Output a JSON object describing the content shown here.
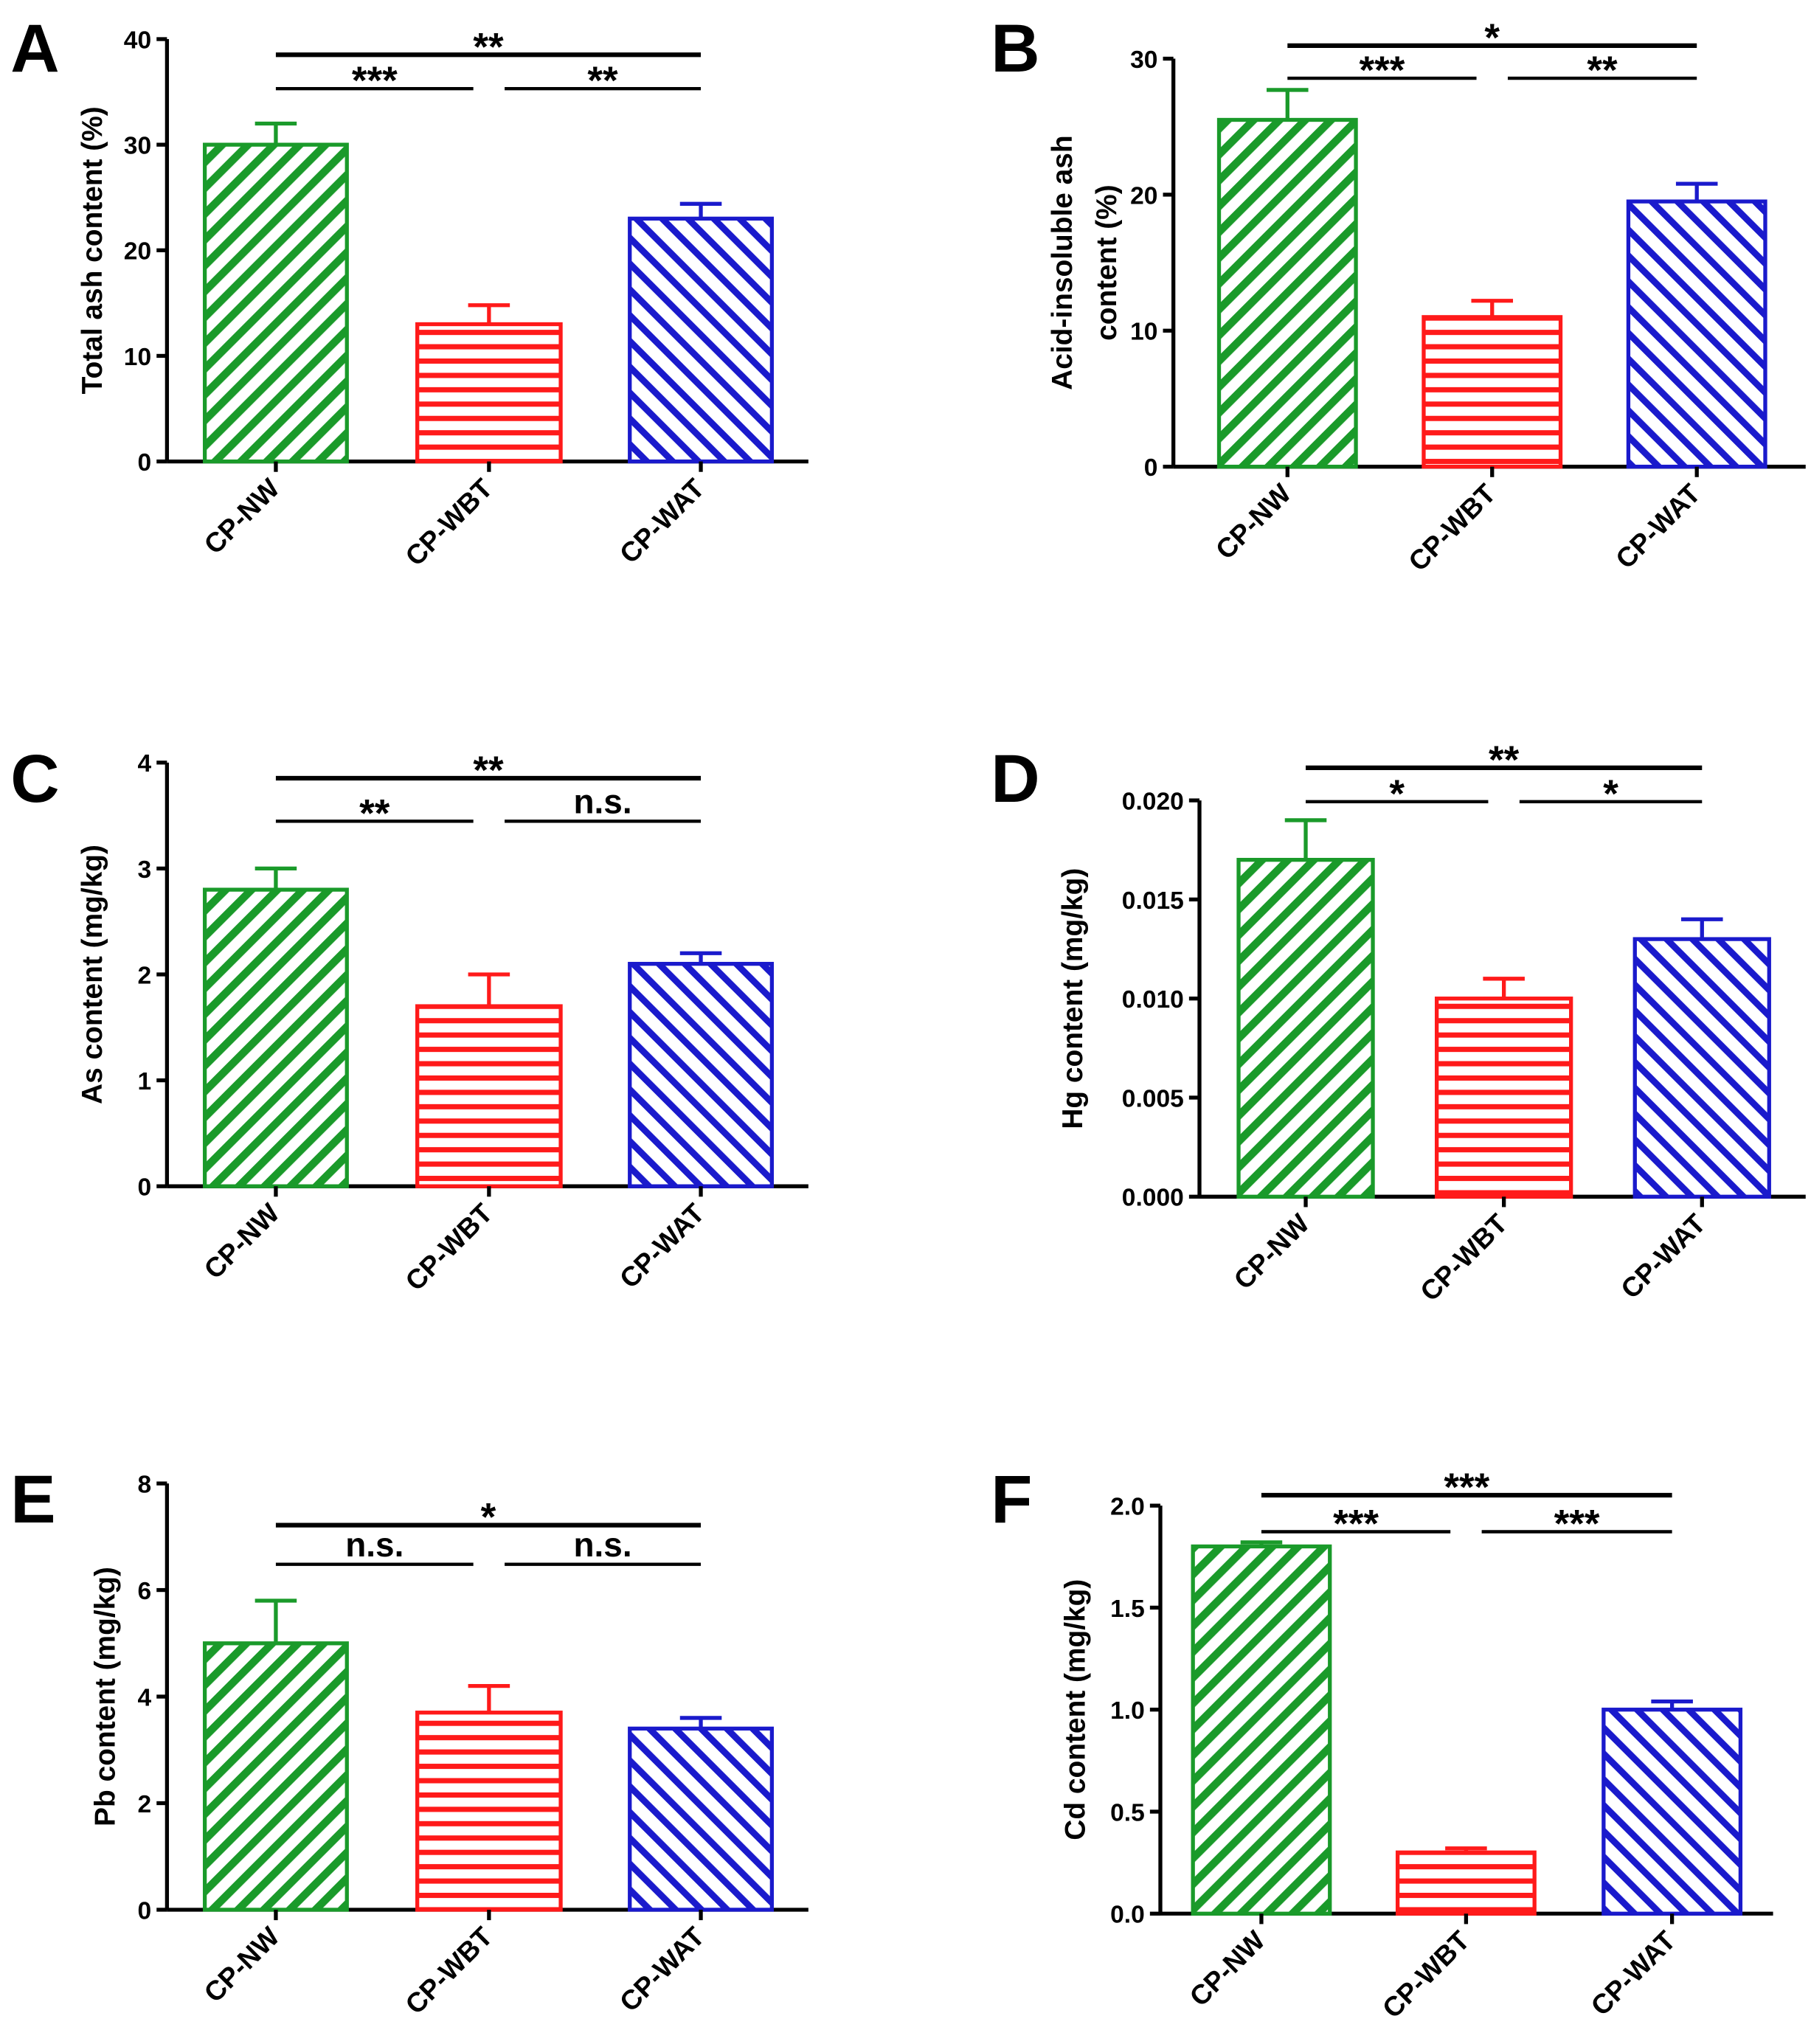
{
  "chart_data": [
    {
      "type": "bar",
      "panel_letter": "A",
      "ylabel": [
        "Total ash content (%)"
      ],
      "categories": [
        "CP-NW",
        "CP-WBT",
        "CP-WAT"
      ],
      "values": [
        30,
        13,
        23
      ],
      "errors": [
        2,
        1.8,
        1.4
      ],
      "ylim": [
        0,
        40
      ],
      "yticks": [
        "0",
        "10",
        "20",
        "30",
        "40"
      ],
      "comparisons": [
        {
          "groups": [
            0,
            2
          ],
          "label": "**"
        },
        {
          "groups": [
            0,
            1
          ],
          "label": "***"
        },
        {
          "groups": [
            1,
            2
          ],
          "label": "**"
        }
      ]
    },
    {
      "type": "bar",
      "panel_letter": "B",
      "ylabel": [
        "Acid-insoluble ash",
        "content (%)"
      ],
      "categories": [
        "CP-NW",
        "CP-WBT",
        "CP-WAT"
      ],
      "values": [
        25.5,
        11,
        19.5
      ],
      "errors": [
        2.2,
        1.2,
        1.3
      ],
      "ylim": [
        0,
        30
      ],
      "yticks": [
        "0",
        "10",
        "20",
        "30"
      ],
      "comparisons": [
        {
          "groups": [
            0,
            2
          ],
          "label": "*"
        },
        {
          "groups": [
            0,
            1
          ],
          "label": "***"
        },
        {
          "groups": [
            1,
            2
          ],
          "label": "**"
        }
      ]
    },
    {
      "type": "bar",
      "panel_letter": "C",
      "ylabel": [
        "As content (mg/kg)"
      ],
      "categories": [
        "CP-NW",
        "CP-WBT",
        "CP-WAT"
      ],
      "values": [
        2.8,
        1.7,
        2.1
      ],
      "errors": [
        0.2,
        0.3,
        0.1
      ],
      "ylim": [
        0,
        4
      ],
      "yticks": [
        "0",
        "1",
        "2",
        "3",
        "4"
      ],
      "comparisons": [
        {
          "groups": [
            0,
            2
          ],
          "label": "**"
        },
        {
          "groups": [
            0,
            1
          ],
          "label": "**"
        },
        {
          "groups": [
            1,
            2
          ],
          "label": "n.s."
        }
      ]
    },
    {
      "type": "bar",
      "panel_letter": "D",
      "ylabel": [
        "Hg content (mg/kg)"
      ],
      "categories": [
        "CP-NW",
        "CP-WBT",
        "CP-WAT"
      ],
      "values": [
        0.017,
        0.01,
        0.013
      ],
      "errors": [
        0.002,
        0.001,
        0.001
      ],
      "ylim": [
        0,
        0.02
      ],
      "yticks": [
        "0.000",
        "0.005",
        "0.010",
        "0.015",
        "0.020"
      ],
      "comparisons": [
        {
          "groups": [
            0,
            2
          ],
          "label": "**"
        },
        {
          "groups": [
            0,
            1
          ],
          "label": "*"
        },
        {
          "groups": [
            1,
            2
          ],
          "label": "*"
        }
      ]
    },
    {
      "type": "bar",
      "panel_letter": "E",
      "ylabel": [
        "Pb content (mg/kg)"
      ],
      "categories": [
        "CP-NW",
        "CP-WBT",
        "CP-WAT"
      ],
      "values": [
        5.0,
        3.7,
        3.4
      ],
      "errors": [
        0.8,
        0.5,
        0.2
      ],
      "ylim": [
        0,
        8
      ],
      "yticks": [
        "0",
        "2",
        "4",
        "6",
        "8"
      ],
      "comparisons": [
        {
          "groups": [
            0,
            2
          ],
          "label": "*"
        },
        {
          "groups": [
            0,
            1
          ],
          "label": "n.s."
        },
        {
          "groups": [
            1,
            2
          ],
          "label": "n.s."
        }
      ]
    },
    {
      "type": "bar",
      "panel_letter": "F",
      "ylabel": [
        "Cd content (mg/kg)"
      ],
      "categories": [
        "CP-NW",
        "CP-WBT",
        "CP-WAT"
      ],
      "values": [
        1.8,
        0.3,
        1.0
      ],
      "errors": [
        0.02,
        0.02,
        0.04
      ],
      "ylim": [
        0,
        2.0
      ],
      "yticks": [
        "0.0",
        "0.5",
        "1.0",
        "1.5",
        "2.0"
      ],
      "comparisons": [
        {
          "groups": [
            0,
            2
          ],
          "label": "***"
        },
        {
          "groups": [
            0,
            1
          ],
          "label": "***"
        },
        {
          "groups": [
            1,
            2
          ],
          "label": "***"
        }
      ]
    }
  ],
  "colors": {
    "CP-NW": "#1a9a2a",
    "CP-WBT": "#ff1a1a",
    "CP-WAT": "#1a1acc"
  }
}
